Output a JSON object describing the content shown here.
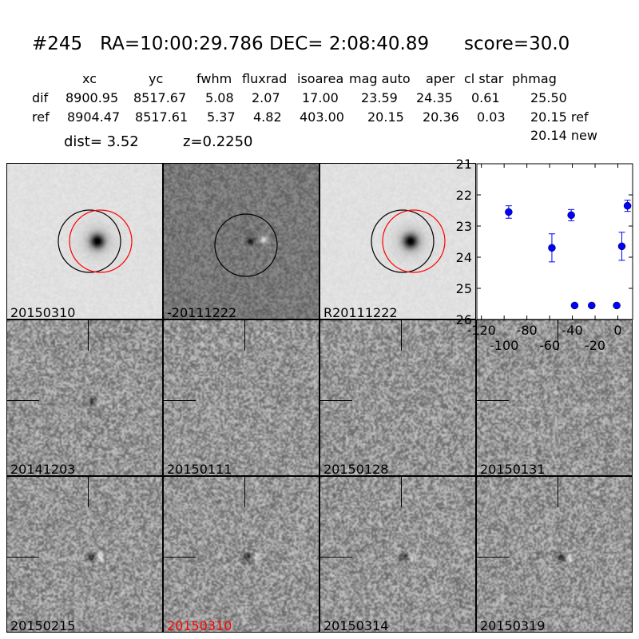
{
  "header": {
    "id": "#245",
    "ra": "RA=10:00:29.786",
    "dec": "DEC= 2:08:40.89",
    "score": "score=30.0"
  },
  "table": {
    "columns": [
      "xc",
      "yc",
      "fwhm",
      "fluxrad",
      "isoarea",
      "mag auto",
      "aper",
      "cl star",
      "phmag"
    ],
    "rows": [
      {
        "label": "dif",
        "values": [
          "8900.95",
          "8517.67",
          "5.08",
          "2.07",
          "17.00",
          "23.59",
          "24.35",
          "0.61",
          "25.50"
        ]
      },
      {
        "label": "ref",
        "values": [
          "8904.47",
          "8517.61",
          "5.37",
          "4.82",
          "403.00",
          "20.15",
          "20.36",
          "0.03",
          "20.15 ref"
        ]
      }
    ],
    "extra_phmag": "20.14 new",
    "dist": "dist=  3.52",
    "z": "z=0.2250"
  },
  "panels": [
    {
      "label": "20150310",
      "type": "new",
      "circles": [
        "black",
        "red"
      ]
    },
    {
      "label": "-20111222",
      "type": "diff",
      "circles": [
        "black"
      ]
    },
    {
      "label": "R20111222",
      "type": "ref",
      "circles": [
        "black",
        "red"
      ]
    },
    {
      "label": "20141203",
      "type": "epoch",
      "blob": 0.7
    },
    {
      "label": "20150111",
      "type": "epoch",
      "blob": 0.1
    },
    {
      "label": "20150128",
      "type": "epoch",
      "blob": 0.1
    },
    {
      "label": "20150131",
      "type": "epoch",
      "blob": 0.0
    },
    {
      "label": "20150215",
      "type": "epoch",
      "blob": 0.9
    },
    {
      "label": "20150310",
      "type": "epoch",
      "blob": 1.0,
      "label_color": "#ff0000"
    },
    {
      "label": "20150314",
      "type": "epoch",
      "blob": 0.8
    },
    {
      "label": "20150319",
      "type": "epoch",
      "blob": 0.9
    }
  ],
  "chart_data": {
    "type": "scatter",
    "xlim": [
      -124,
      13
    ],
    "ylim": [
      26,
      21
    ],
    "xticks": [
      -120,
      -100,
      -80,
      -60,
      -40,
      -20,
      0
    ],
    "yticks": [
      21,
      22,
      23,
      24,
      25,
      26
    ],
    "color": "#0000ff",
    "points": [
      {
        "x": -96,
        "y": 22.55,
        "err": 0.2
      },
      {
        "x": -58,
        "y": 23.7,
        "err": 0.45
      },
      {
        "x": -41,
        "y": 22.65,
        "err": 0.18
      },
      {
        "x": -38,
        "y": 25.55,
        "err": 0.05
      },
      {
        "x": -23,
        "y": 25.55,
        "err": 0.05
      },
      {
        "x": -1,
        "y": 25.55,
        "err": 0.05
      },
      {
        "x": 3.5,
        "y": 23.65,
        "err": 0.45
      },
      {
        "x": 8.5,
        "y": 22.35,
        "err": 0.18
      }
    ]
  }
}
